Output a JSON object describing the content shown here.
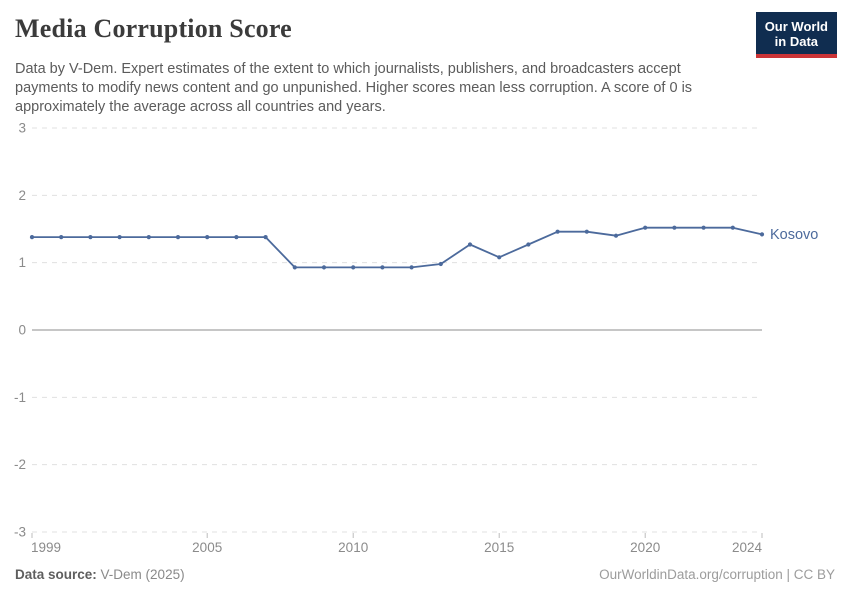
{
  "header": {
    "title": "Media Corruption Score",
    "subtitle": "Data by V-Dem. Expert estimates of the extent to which journalists, publishers, and broadcasters accept payments to modify news content and go unpunished. Higher scores mean less corruption. A score of 0 is approximately the average across all countries and years.",
    "logo": {
      "line1": "Our World",
      "line2": "in Data",
      "bg_color": "#102d50",
      "accent_color": "#cb3437"
    }
  },
  "chart_data": {
    "type": "line",
    "title": "Media Corruption Score",
    "xlabel": "",
    "ylabel": "",
    "xlim": [
      1999,
      2024
    ],
    "ylim": [
      -3,
      3
    ],
    "x_ticks": [
      1999,
      2005,
      2010,
      2015,
      2020,
      2024
    ],
    "y_ticks": [
      3,
      2,
      1,
      0,
      -1,
      -2,
      -3
    ],
    "grid": "horizontal-dashed",
    "zero_line": true,
    "legend_position": "end-of-line",
    "series": [
      {
        "name": "Kosovo",
        "color": "#4c6a9c",
        "x": [
          1999,
          2000,
          2001,
          2002,
          2003,
          2004,
          2005,
          2006,
          2007,
          2008,
          2009,
          2010,
          2011,
          2012,
          2013,
          2014,
          2015,
          2016,
          2017,
          2018,
          2019,
          2020,
          2021,
          2022,
          2023,
          2024
        ],
        "values": [
          1.38,
          1.38,
          1.38,
          1.38,
          1.38,
          1.38,
          1.38,
          1.38,
          1.38,
          0.93,
          0.93,
          0.93,
          0.93,
          0.93,
          0.98,
          1.27,
          1.08,
          1.27,
          1.46,
          1.46,
          1.4,
          1.52,
          1.52,
          1.52,
          1.52,
          1.42
        ]
      }
    ]
  },
  "footer": {
    "data_source_label": "Data source:",
    "data_source_value": "V-Dem (2025)",
    "attribution": "OurWorldinData.org/corruption | CC BY"
  }
}
